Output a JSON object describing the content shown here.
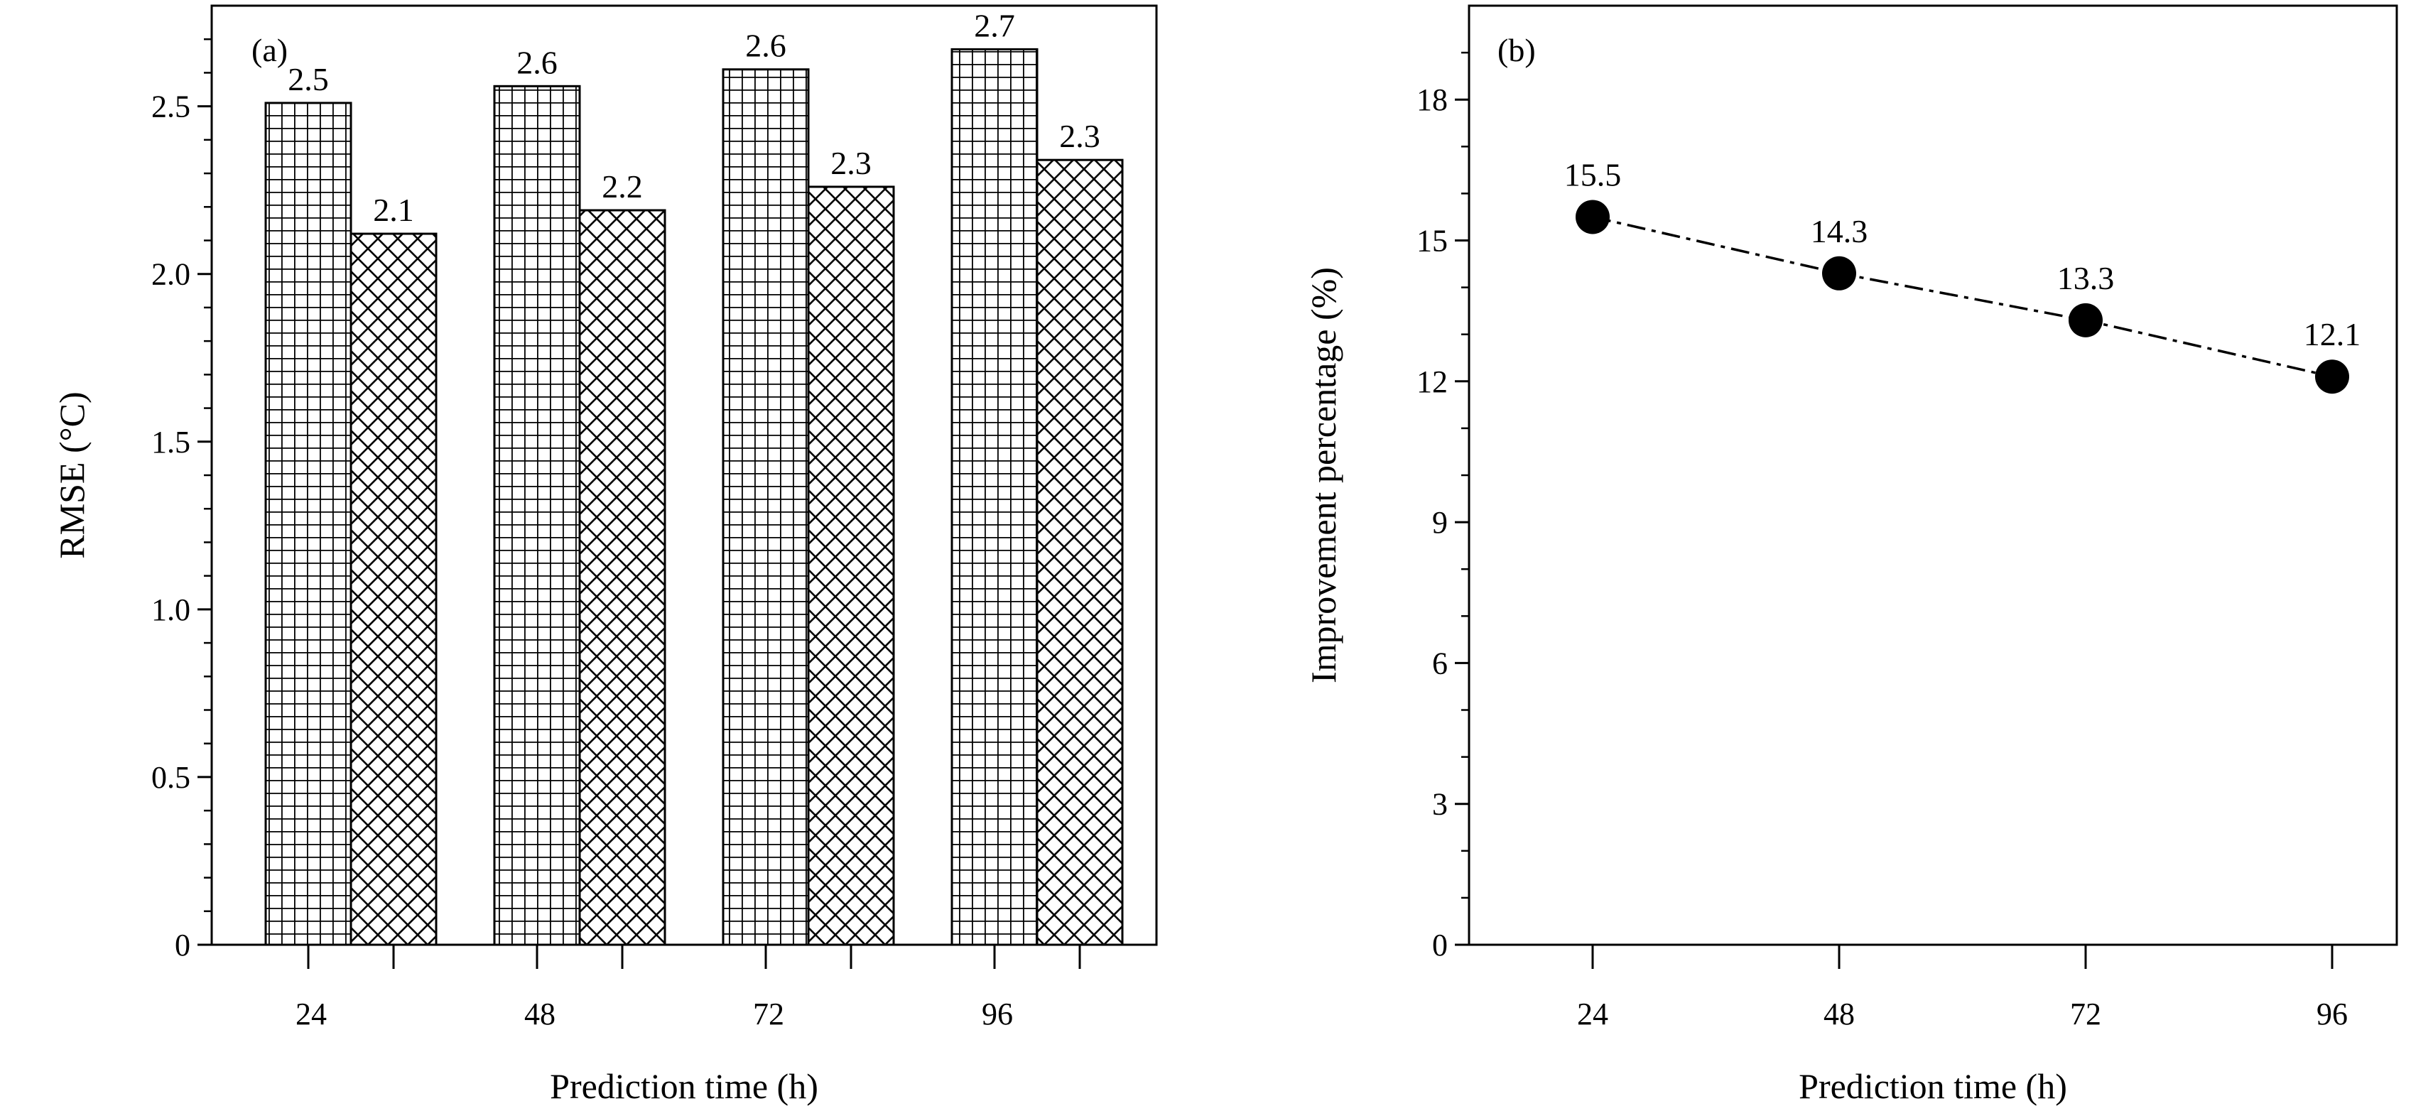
{
  "chart_data": [
    {
      "type": "bar",
      "panel_label": "(a)",
      "xlabel": "Prediction time (h)",
      "ylabel": "RMSE (°C)",
      "categories": [
        "24",
        "48",
        "72",
        "96"
      ],
      "ylim": [
        0,
        2.8
      ],
      "yticks": [
        "0",
        "0.5",
        "1.0",
        "1.5",
        "2.0",
        "2.5"
      ],
      "series": [
        {
          "pattern": "grid",
          "values": [
            2.51,
            2.56,
            2.61,
            2.67
          ],
          "labels": [
            "2.5",
            "2.6",
            "2.6",
            "2.7"
          ]
        },
        {
          "pattern": "crosshatch",
          "values": [
            2.12,
            2.19,
            2.26,
            2.34
          ],
          "labels": [
            "2.1",
            "2.2",
            "2.3",
            "2.3"
          ]
        }
      ],
      "grid": false,
      "legend": "none"
    },
    {
      "type": "line",
      "panel_label": "(b)",
      "xlabel": "Prediction time (h)",
      "ylabel": "Improvement percentage (%)",
      "x": [
        "24",
        "48",
        "72",
        "96"
      ],
      "ylim": [
        0,
        20
      ],
      "yticks": [
        "0",
        "3",
        "6",
        "9",
        "12",
        "15",
        "18"
      ],
      "values": [
        15.5,
        14.3,
        13.3,
        12.1
      ],
      "labels": [
        "15.5",
        "14.3",
        "13.3",
        "12.1"
      ],
      "line_style": "dash-dot",
      "marker": "filled-circle",
      "grid": false,
      "legend": "none"
    }
  ]
}
